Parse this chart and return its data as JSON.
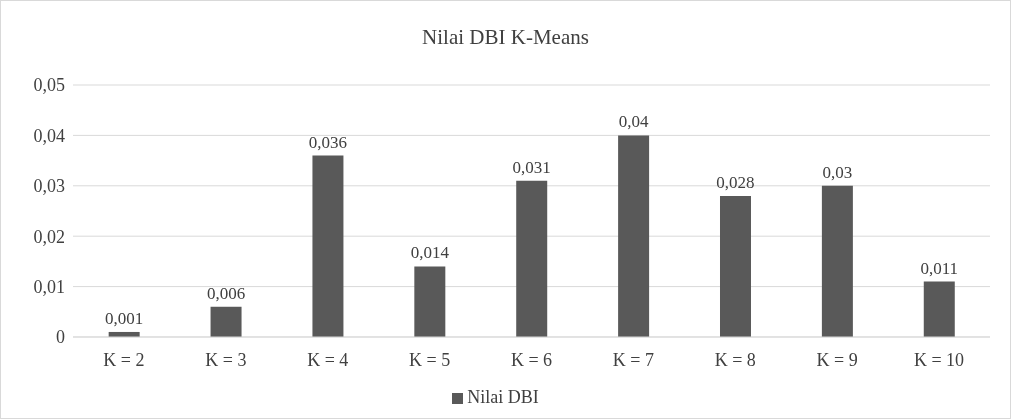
{
  "chart_data": {
    "type": "bar",
    "title": "Nilai DBI K-Means",
    "categories": [
      "K = 2",
      "K = 3",
      "K = 4",
      "K = 5",
      "K = 6",
      "K = 7",
      "K = 8",
      "K = 9",
      "K = 10"
    ],
    "series": [
      {
        "name": "Nilai DBI",
        "color": "#595959",
        "values": [
          0.001,
          0.006,
          0.036,
          0.014,
          0.031,
          0.04,
          0.028,
          0.03,
          0.011
        ],
        "value_labels": [
          "0,001",
          "0,006",
          "0,036",
          "0,014",
          "0,031",
          "0,04",
          "0,028",
          "0,03",
          "0,011"
        ]
      }
    ],
    "ylim": [
      0,
      0.05
    ],
    "yticks": [
      {
        "value": 0,
        "label": "0"
      },
      {
        "value": 0.01,
        "label": "0,01"
      },
      {
        "value": 0.02,
        "label": "0,02"
      },
      {
        "value": 0.03,
        "label": "0,03"
      },
      {
        "value": 0.04,
        "label": "0,04"
      },
      {
        "value": 0.05,
        "label": "0,05"
      }
    ],
    "grid": "y",
    "legend": "bottom"
  }
}
